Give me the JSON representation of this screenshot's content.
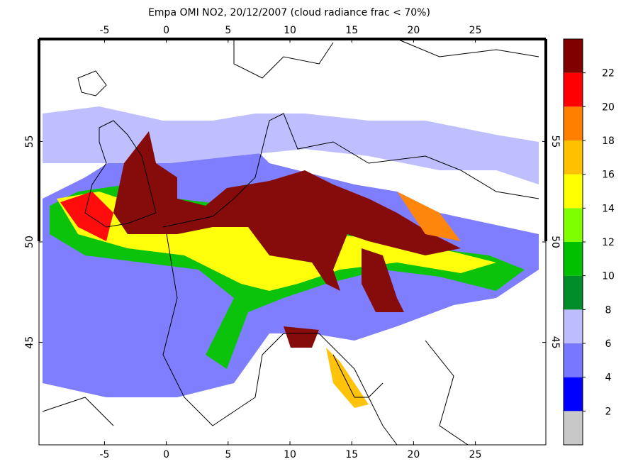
{
  "chart_data": {
    "type": "map",
    "title": "Empa OMI NO2, 20/12/2007 (cloud radiance frac < 70%)",
    "xlim": [
      -10.3,
      30.7
    ],
    "xticks": [
      -5,
      0,
      5,
      10,
      15,
      20,
      25
    ],
    "ylim": [
      39.9,
      60.1
    ],
    "yticks": [
      45,
      50,
      55
    ],
    "colorbar": {
      "levels": [
        0,
        2,
        4,
        6,
        8,
        10,
        12,
        14,
        16,
        18,
        20,
        22,
        24
      ],
      "colors": [
        "#c8c8c8",
        "#0000ff",
        "#7878ff",
        "#bcbcff",
        "#008c28",
        "#00c000",
        "#80ff00",
        "#ffff00",
        "#ffc000",
        "#ff8000",
        "#ff0000",
        "#800000"
      ],
      "ticks": [
        2,
        4,
        6,
        8,
        10,
        12,
        14,
        16,
        18,
        20,
        22
      ]
    }
  }
}
